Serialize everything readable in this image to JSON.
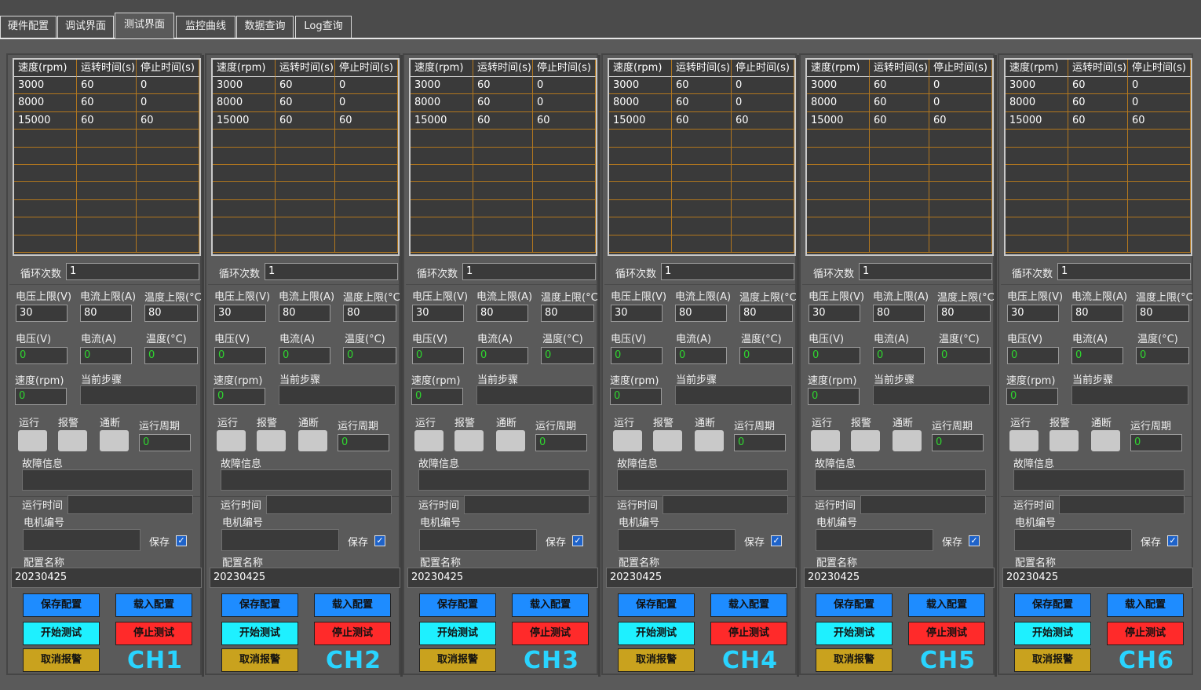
{
  "tabs": [
    {
      "label": "硬件配置",
      "active": false
    },
    {
      "label": "调试界面",
      "active": false
    },
    {
      "label": "测试界面",
      "active": true
    },
    {
      "label": "监控曲线",
      "active": false
    },
    {
      "label": "数据查询",
      "active": false
    },
    {
      "label": "Log查询",
      "active": false
    }
  ],
  "table_headers": [
    "速度(rpm)",
    "运转时间(s)",
    "停止时间(s)"
  ],
  "labels": {
    "cycle": "循环次数",
    "voltage_limit": "电压上限(V)",
    "current_limit": "电流上限(A)",
    "temp_limit": "温度上限(°C",
    "voltage": "电压(V)",
    "current": "电流(A)",
    "temp": "温度(°C)",
    "speed": "速度(rpm)",
    "step": "当前步骤",
    "run": "运行",
    "alarm": "报警",
    "comm": "通断",
    "period": "运行周期",
    "fault": "故障信息",
    "runtime": "运行时间",
    "motor_no": "电机编号",
    "save": "保存",
    "config_name": "配置名称"
  },
  "buttons": {
    "save_config": "保存配置",
    "load_config": "载入配置",
    "start_test": "开始测试",
    "stop_test": "停止测试",
    "cancel_alarm": "取消报警"
  },
  "colors": {
    "led_idle": "#c9c9c9",
    "value_green": "#2fd62f",
    "channel_label": "#29d4ff",
    "grid_line": "#b2771e"
  },
  "channels": [
    {
      "name": "CH1",
      "rows": [
        [
          "3000",
          "60",
          "0"
        ],
        [
          "8000",
          "60",
          "0"
        ],
        [
          "15000",
          "60",
          "60"
        ]
      ],
      "cycle": "1",
      "voltage_limit": "30",
      "current_limit": "80",
      "temp_limit": "80",
      "voltage": "0",
      "current": "0",
      "temp": "0",
      "speed": "0",
      "step": "",
      "period": "0",
      "fault": "",
      "runtime": "",
      "motor_no": "",
      "save_checked": true,
      "config_name": "20230425"
    },
    {
      "name": "CH2",
      "rows": [
        [
          "3000",
          "60",
          "0"
        ],
        [
          "8000",
          "60",
          "0"
        ],
        [
          "15000",
          "60",
          "60"
        ]
      ],
      "cycle": "1",
      "voltage_limit": "30",
      "current_limit": "80",
      "temp_limit": "80",
      "voltage": "0",
      "current": "0",
      "temp": "0",
      "speed": "0",
      "step": "",
      "period": "0",
      "fault": "",
      "runtime": "",
      "motor_no": "",
      "save_checked": true,
      "config_name": "20230425"
    },
    {
      "name": "CH3",
      "rows": [
        [
          "3000",
          "60",
          "0"
        ],
        [
          "8000",
          "60",
          "0"
        ],
        [
          "15000",
          "60",
          "60"
        ]
      ],
      "cycle": "1",
      "voltage_limit": "30",
      "current_limit": "80",
      "temp_limit": "80",
      "voltage": "0",
      "current": "0",
      "temp": "0",
      "speed": "0",
      "step": "",
      "period": "0",
      "fault": "",
      "runtime": "",
      "motor_no": "",
      "save_checked": true,
      "config_name": "20230425"
    },
    {
      "name": "CH4",
      "rows": [
        [
          "3000",
          "60",
          "0"
        ],
        [
          "8000",
          "60",
          "0"
        ],
        [
          "15000",
          "60",
          "60"
        ]
      ],
      "cycle": "1",
      "voltage_limit": "30",
      "current_limit": "80",
      "temp_limit": "80",
      "voltage": "0",
      "current": "0",
      "temp": "0",
      "speed": "0",
      "step": "",
      "period": "0",
      "fault": "",
      "runtime": "",
      "motor_no": "",
      "save_checked": true,
      "config_name": "20230425"
    },
    {
      "name": "CH5",
      "rows": [
        [
          "3000",
          "60",
          "0"
        ],
        [
          "8000",
          "60",
          "0"
        ],
        [
          "15000",
          "60",
          "60"
        ]
      ],
      "cycle": "1",
      "voltage_limit": "30",
      "current_limit": "80",
      "temp_limit": "80",
      "voltage": "0",
      "current": "0",
      "temp": "0",
      "speed": "0",
      "step": "",
      "period": "0",
      "fault": "",
      "runtime": "",
      "motor_no": "",
      "save_checked": true,
      "config_name": "20230425"
    },
    {
      "name": "CH6",
      "rows": [
        [
          "3000",
          "60",
          "0"
        ],
        [
          "8000",
          "60",
          "0"
        ],
        [
          "15000",
          "60",
          "60"
        ]
      ],
      "cycle": "1",
      "voltage_limit": "30",
      "current_limit": "80",
      "temp_limit": "80",
      "voltage": "0",
      "current": "0",
      "temp": "0",
      "speed": "0",
      "step": "",
      "period": "0",
      "fault": "",
      "runtime": "",
      "motor_no": "",
      "save_checked": true,
      "config_name": "20230425"
    }
  ]
}
